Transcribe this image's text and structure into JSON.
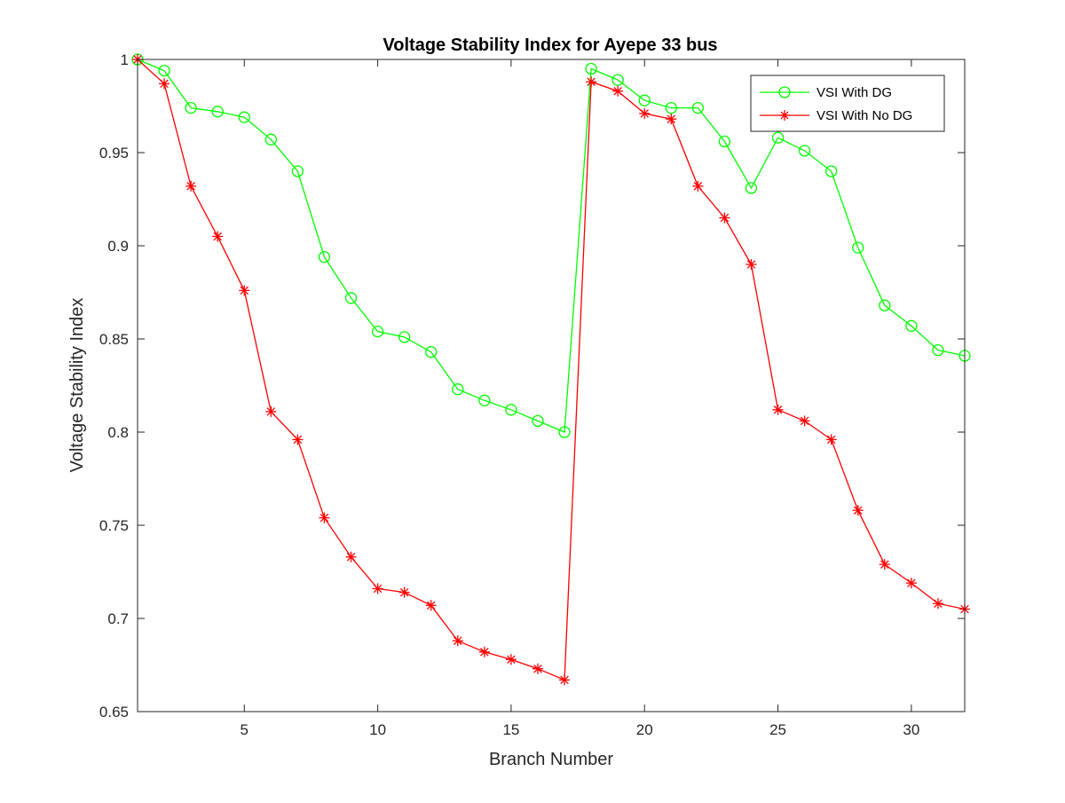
{
  "chart_data": {
    "type": "line",
    "title": "Voltage Stability Index for Ayepe 33 bus",
    "xlabel": "Branch Number",
    "ylabel": "Voltage Stability Index",
    "xlim": [
      1,
      32
    ],
    "ylim": [
      0.65,
      1
    ],
    "xticks": [
      5,
      10,
      15,
      20,
      25,
      30
    ],
    "xtick_labels": [
      "5",
      "10",
      "15",
      "20",
      "25",
      "30"
    ],
    "yticks": [
      0.65,
      0.7,
      0.75,
      0.8,
      0.85,
      0.9,
      0.95,
      1
    ],
    "ytick_labels": [
      "0.65",
      "0.7",
      "0.75",
      "0.8",
      "0.85",
      "0.9",
      "0.95",
      "1"
    ],
    "grid": false,
    "legend_position": "top-right",
    "x": [
      1,
      2,
      3,
      4,
      5,
      6,
      7,
      8,
      9,
      10,
      11,
      12,
      13,
      14,
      15,
      16,
      17,
      18,
      19,
      20,
      21,
      22,
      23,
      24,
      25,
      26,
      27,
      28,
      29,
      30,
      31,
      32
    ],
    "series": [
      {
        "name": "VSI With DG",
        "color": "#00ff00",
        "marker": "circle",
        "values": [
          1.0,
          0.994,
          0.974,
          0.972,
          0.969,
          0.957,
          0.94,
          0.894,
          0.872,
          0.854,
          0.851,
          0.843,
          0.823,
          0.817,
          0.812,
          0.806,
          0.8,
          0.995,
          0.989,
          0.978,
          0.974,
          0.974,
          0.956,
          0.931,
          0.958,
          0.951,
          0.94,
          0.899,
          0.868,
          0.857,
          0.844,
          0.841
        ]
      },
      {
        "name": "VSI With No DG",
        "color": "#ff0000",
        "marker": "asterisk",
        "values": [
          1.0,
          0.987,
          0.932,
          0.905,
          0.876,
          0.811,
          0.796,
          0.754,
          0.733,
          0.716,
          0.714,
          0.707,
          0.688,
          0.682,
          0.678,
          0.673,
          0.667,
          0.988,
          0.983,
          0.971,
          0.968,
          0.932,
          0.915,
          0.89,
          0.812,
          0.806,
          0.796,
          0.758,
          0.729,
          0.719,
          0.708,
          0.705
        ]
      }
    ]
  }
}
